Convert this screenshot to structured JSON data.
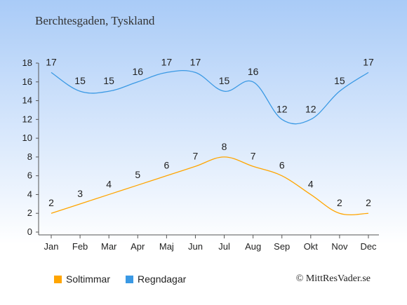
{
  "header": {
    "title": "Berchtesgaden, Tyskland"
  },
  "footer": {
    "credit": "© MittResVader.se"
  },
  "chart_data": {
    "type": "line",
    "categories": [
      "Jan",
      "Feb",
      "Mar",
      "Apr",
      "Maj",
      "Jun",
      "Jul",
      "Aug",
      "Sep",
      "Okt",
      "Nov",
      "Dec"
    ],
    "ylim": [
      0,
      18
    ],
    "yticks": [
      0,
      2,
      4,
      6,
      8,
      10,
      12,
      14,
      16,
      18
    ],
    "series": [
      {
        "name": "Soltimmar",
        "color": "#ffa500",
        "values": [
          2,
          3,
          4,
          5,
          6,
          7,
          8,
          7,
          6,
          4,
          2,
          2
        ]
      },
      {
        "name": "Regndagar",
        "color": "#3a99e4",
        "values": [
          17,
          15,
          15,
          16,
          17,
          17,
          15,
          16,
          12,
          12,
          15,
          17
        ]
      }
    ]
  }
}
